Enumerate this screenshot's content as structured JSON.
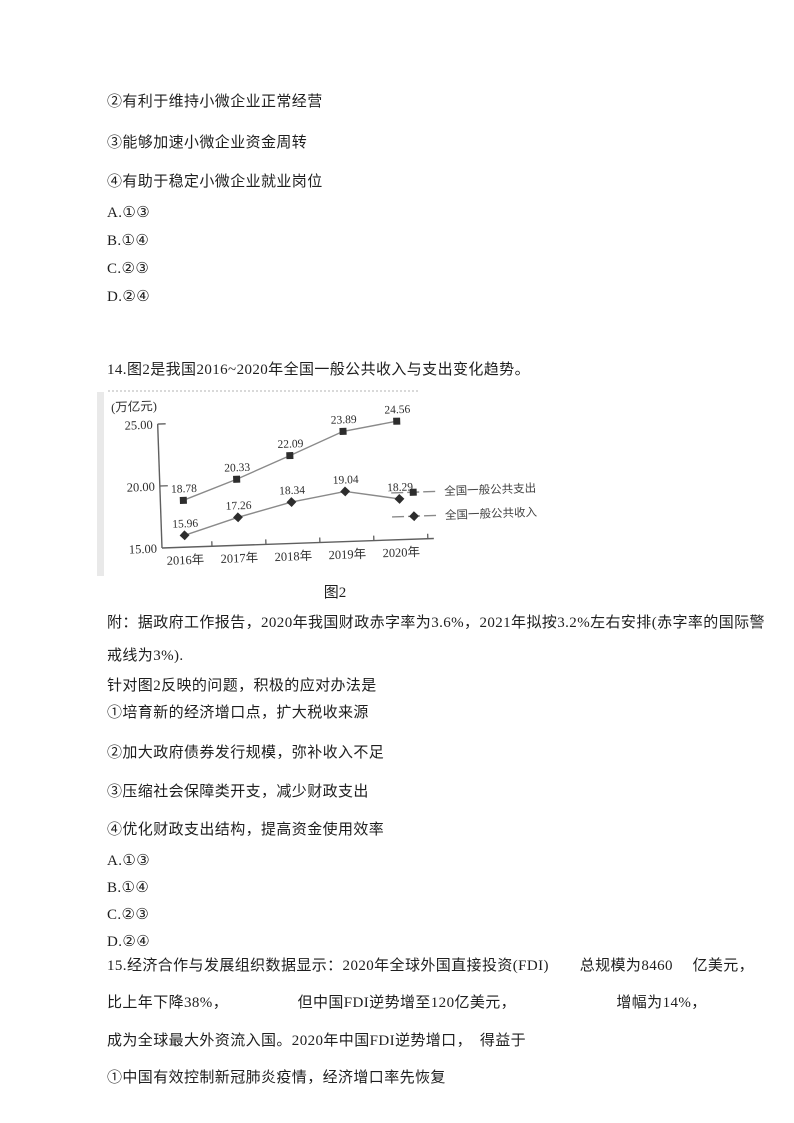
{
  "doc": {
    "q13": {
      "statements": [
        "②有利于维持小微企业正常经营",
        "③能够加速小微企业资金周转",
        "④有助于稳定小微企业就业岗位"
      ],
      "choices": [
        "A.①③",
        "B.①④",
        "C.②③",
        "D.②④"
      ]
    },
    "q14": {
      "stem": "14.图2是我国2016~2020年全国一般公共收入与支出变化趋势。",
      "figure_caption": "图2",
      "note_line1": "附：据政府工作报告，2020年我国财政赤字率为3.6%，2021年拟按3.2%左右安排(赤字率的国际警",
      "note_line2": "戒线为3%).",
      "question": "针对图2反映的问题，积极的应对办法是",
      "statements": [
        "①培育新的经济增口点，扩大税收来源",
        "②加大政府债券发行规模，弥补收入不足",
        "③压缩社会保障类开支，减少财政支出",
        "④优化财政支出结构，提高资金使用效率"
      ],
      "choices": [
        "A.①③",
        "B.①④",
        "C.②③",
        "D.②④"
      ]
    },
    "q15": {
      "line1": "15.经济合作与发展组织数据显示：2020年全球外国直接投资(FDI)　　总规模为8460　 亿美元，",
      "line2": "比上年下降38%，　　　　　但中国FDI逆势增至120亿美元，　　　　　　　增幅为14%，",
      "line3": "成为全球最大外资流入国。2020年中国FDI逆势增口，　得益于",
      "statement1": "①中国有效控制新冠肺炎疫情，经济增口率先恢复"
    }
  },
  "chart_data": {
    "type": "line",
    "title": "图2 我国2016~2020年全国一般公共收入与支出变化趋势",
    "unit_label": "(万亿元)",
    "x": [
      "2016年",
      "2017年",
      "2018年",
      "2019年",
      "2020年"
    ],
    "series": [
      {
        "name": "全国一般公共支出",
        "marker": "square",
        "values": [
          18.78,
          20.33,
          22.09,
          23.89,
          24.56
        ]
      },
      {
        "name": "全国一般公共收入",
        "marker": "diamond",
        "values": [
          15.96,
          17.26,
          18.34,
          19.04,
          18.29
        ]
      }
    ],
    "ylim": [
      15,
      25
    ],
    "yticks": [
      25,
      20,
      15
    ],
    "ytick_labels": [
      "25.00",
      "20.00",
      "15.00"
    ],
    "xlabel": "",
    "ylabel": "万亿元",
    "grid": false,
    "legend_position": "right",
    "colors": {
      "line": "#8a8a8a",
      "marker": "#2d2d2d",
      "axis": "#5f5f5f",
      "text": "#2e2e2e"
    }
  }
}
